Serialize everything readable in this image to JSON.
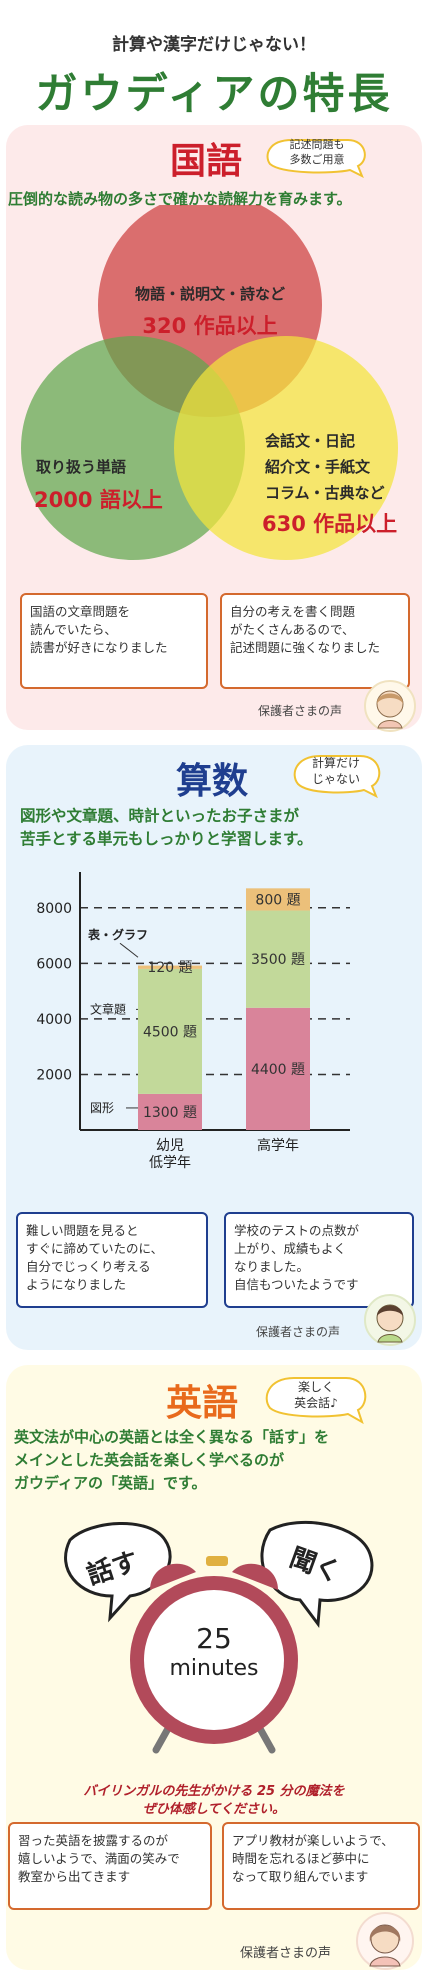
{
  "header": {
    "kicker": "計算や漢字だけじゃない！",
    "headline": "ガウディアの特長"
  },
  "kokugo": {
    "title": "国語",
    "bubble_line1": "記述問題も",
    "bubble_line2": "多数ご用意",
    "lead": "圧倒的な読み物の多さで確かな読解力を育みます。",
    "venn_top_label": "物語・説明文・詩など",
    "venn_top_value": "320 作品以上",
    "venn_left_label": "取り扱う単語",
    "venn_left_value": "2000 語以上",
    "venn_right_line1": "会話文・日記",
    "venn_right_line2": "紹介文・手紙文",
    "venn_right_line3": "コラム・古典など",
    "venn_right_value": "630 作品以上",
    "testimonial_left": [
      "国語の文章問題を",
      "読んでいたら、",
      "読書が好きになりました"
    ],
    "testimonial_right": [
      "自分の考えを書く問題",
      "がたくさんあるので、",
      "記述問題に強くなりました"
    ],
    "voice_label": "保護者さまの声",
    "colors": {
      "title": "#cc1f2b",
      "lead": "#2f7d34",
      "circle_top": "#d04a4a",
      "circle_left": "#5fa84e",
      "circle_right": "#f2e53b",
      "value": "#cc1f2b"
    }
  },
  "sansu": {
    "title": "算数",
    "bubble_line1": "計算だけ",
    "bubble_line2": "じゃない",
    "lead_line1": "図形や文章題、時計といったお子さまが",
    "lead_line2": "苦手とする単元もしっかりと学習します。",
    "chart_data": {
      "type": "bar",
      "categories": [
        "幼児\n低学年",
        "高学年"
      ],
      "category_lines": [
        [
          "幼児",
          "低学年"
        ],
        [
          "高学年"
        ]
      ],
      "ylim": [
        0,
        9000
      ],
      "yticks": [
        "8000",
        "6000",
        "4000",
        "2000"
      ],
      "ytick_values": [
        8000,
        6000,
        4000,
        2000
      ],
      "series": [
        {
          "name": "図形",
          "values": [
            1300,
            4400
          ],
          "labels": [
            "1300 題",
            "4400 題"
          ],
          "color": "#d9849a"
        },
        {
          "name": "文章題",
          "values": [
            4500,
            3500
          ],
          "labels": [
            "4500 題",
            "3500 題"
          ],
          "color": "#c2d99a"
        },
        {
          "name": "表・グラフ",
          "values": [
            120,
            800
          ],
          "labels": [
            "120 題",
            "800 題"
          ],
          "color": "#ecc07a"
        }
      ],
      "annotation_labels": [
        "表・グラフ",
        "文章題",
        "図形"
      ],
      "grid": true
    },
    "testimonial_left": [
      "難しい問題を見ると",
      "すぐに諦めていたのに、",
      "自分でじっくり考える",
      "ようになりました"
    ],
    "testimonial_right": [
      "学校のテストの点数が",
      "上がり、成績もよく",
      "なりました。",
      "自信もついたようです"
    ],
    "voice_label": "保護者さまの声",
    "colors": {
      "title": "#1f3e8f",
      "lead": "#2f7d34"
    }
  },
  "eigo": {
    "title": "英語",
    "bubble_line1": "楽しく",
    "bubble_line2": "英会話♪",
    "lead_line1": "英文法が中心の英語とは全く異なる「話す」を",
    "lead_line2": "メインとした英会話を楽しく学べるのが",
    "lead_line3": "ガウディアの「英語」です。",
    "speech_left": "話す",
    "speech_right": "聞く",
    "clock_number": "25",
    "clock_unit": "minutes",
    "caption_line1": "バイリンガルの先生がかける 25 分の魔法を",
    "caption_line2": "ぜひ体感してください。",
    "testimonial_left": [
      "習った英語を披露するのが",
      "嬉しいようで、満面の笑みで",
      "教室から出てきます"
    ],
    "testimonial_right": [
      "アプリ教材が楽しいようで、",
      "時間を忘れるほど夢中に",
      "なって取り組んでいます"
    ],
    "voice_label": "保護者さまの声",
    "colors": {
      "title": "#e86a1c",
      "lead": "#2f7d34",
      "clock": "#b24a5a",
      "caption": "#b0202b"
    }
  }
}
